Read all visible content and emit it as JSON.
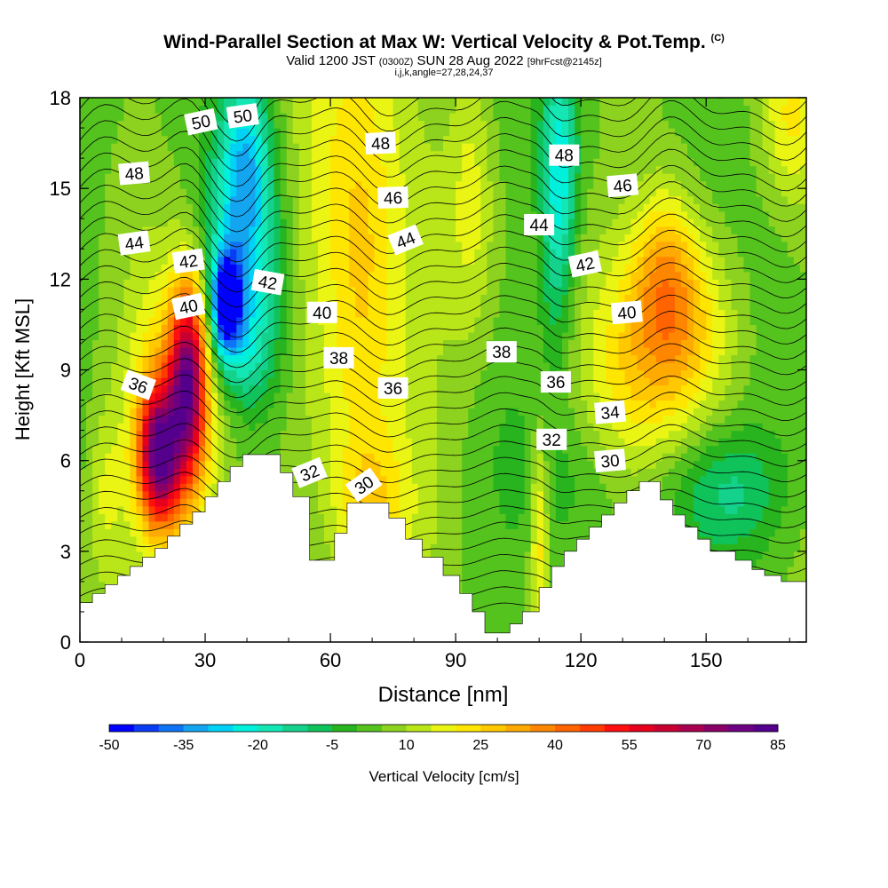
{
  "title": {
    "main": "Wind-Parallel Section at Max W: Vertical Velocity & Pot.Temp.",
    "copyright": "(C)",
    "valid_prefix": "Valid 1200 JST",
    "valid_utc": "(0300Z)",
    "valid_date": "SUN 28 Aug 2022",
    "forecast": "[9hrFcst@2145z]",
    "indices": "i,j,k,angle=27,28,24,37"
  },
  "chart_data": {
    "type": "heatmap",
    "xlabel": "Distance [nm]",
    "ylabel": "Height [Kft MSL]",
    "xlim": [
      0,
      174
    ],
    "ylim": [
      0,
      18
    ],
    "x_ticks": [
      0,
      30,
      60,
      90,
      120,
      150
    ],
    "y_ticks": [
      0,
      3,
      6,
      9,
      12,
      15,
      18
    ],
    "colorbar": {
      "label": "Vertical Velocity [cm/s]",
      "min": -50,
      "max": 85,
      "step": 5,
      "tick_labels": [
        -50,
        -35,
        -20,
        -5,
        10,
        25,
        40,
        55,
        70,
        85
      ],
      "colors": [
        "#0000ff",
        "#0a3cf5",
        "#0f73f5",
        "#14a5f0",
        "#00d2f5",
        "#00f0dc",
        "#14e6b4",
        "#14d28c",
        "#0fc35a",
        "#28b41e",
        "#55c31e",
        "#8cd21e",
        "#b9e619",
        "#ebf514",
        "#ffe600",
        "#ffc800",
        "#ffaa00",
        "#ff8700",
        "#ff6400",
        "#ff3c00",
        "#ff0f0f",
        "#e6001e",
        "#c80032",
        "#aa0050",
        "#880066",
        "#6e0082",
        "#55008c"
      ]
    },
    "terrain": [
      [
        0,
        1.3
      ],
      [
        3,
        1.3
      ],
      [
        3,
        1.6
      ],
      [
        6,
        1.6
      ],
      [
        6,
        1.9
      ],
      [
        9,
        1.9
      ],
      [
        9,
        2.2
      ],
      [
        12,
        2.2
      ],
      [
        12,
        2.5
      ],
      [
        15,
        2.5
      ],
      [
        15,
        2.8
      ],
      [
        18,
        2.8
      ],
      [
        18,
        3.1
      ],
      [
        21,
        3.1
      ],
      [
        21,
        3.5
      ],
      [
        24,
        3.5
      ],
      [
        24,
        3.9
      ],
      [
        27,
        3.9
      ],
      [
        27,
        4.3
      ],
      [
        30,
        4.3
      ],
      [
        30,
        4.8
      ],
      [
        33,
        4.8
      ],
      [
        33,
        5.3
      ],
      [
        36,
        5.3
      ],
      [
        36,
        5.8
      ],
      [
        39,
        5.8
      ],
      [
        39,
        6.2
      ],
      [
        48,
        6.2
      ],
      [
        48,
        5.6
      ],
      [
        51,
        5.6
      ],
      [
        51,
        4.8
      ],
      [
        55,
        4.8
      ],
      [
        55,
        2.7
      ],
      [
        61,
        2.7
      ],
      [
        61,
        3.6
      ],
      [
        64,
        3.6
      ],
      [
        64,
        4.6
      ],
      [
        74,
        4.6
      ],
      [
        74,
        4.1
      ],
      [
        78,
        4.1
      ],
      [
        78,
        3.4
      ],
      [
        82,
        3.4
      ],
      [
        82,
        2.8
      ],
      [
        87,
        2.8
      ],
      [
        87,
        2.2
      ],
      [
        91,
        2.2
      ],
      [
        91,
        1.6
      ],
      [
        94,
        1.6
      ],
      [
        94,
        1.0
      ],
      [
        97,
        1.0
      ],
      [
        97,
        0.3
      ],
      [
        103,
        0.3
      ],
      [
        103,
        0.6
      ],
      [
        106,
        0.6
      ],
      [
        106,
        1.0
      ],
      [
        110,
        1.0
      ],
      [
        110,
        1.8
      ],
      [
        113,
        1.8
      ],
      [
        113,
        2.5
      ],
      [
        116,
        2.5
      ],
      [
        116,
        3.0
      ],
      [
        119,
        3.0
      ],
      [
        119,
        3.4
      ],
      [
        122,
        3.4
      ],
      [
        122,
        3.8
      ],
      [
        125,
        3.8
      ],
      [
        125,
        4.2
      ],
      [
        128,
        4.2
      ],
      [
        128,
        4.6
      ],
      [
        131,
        4.6
      ],
      [
        131,
        5.0
      ],
      [
        134,
        5.0
      ],
      [
        134,
        5.3
      ],
      [
        139,
        5.3
      ],
      [
        139,
        4.7
      ],
      [
        142,
        4.7
      ],
      [
        142,
        4.2
      ],
      [
        145,
        4.2
      ],
      [
        145,
        3.8
      ],
      [
        148,
        3.8
      ],
      [
        148,
        3.4
      ],
      [
        151,
        3.4
      ],
      [
        151,
        3.0
      ],
      [
        157,
        3.0
      ],
      [
        157,
        2.7
      ],
      [
        161,
        2.7
      ],
      [
        161,
        2.4
      ],
      [
        164,
        2.4
      ],
      [
        164,
        2.2
      ],
      [
        168,
        2.2
      ],
      [
        168,
        2.0
      ],
      [
        174,
        2.0
      ]
    ],
    "w_features": [
      {
        "x": 19,
        "y": 6.2,
        "sx": 3.5,
        "sy": 1.6,
        "w": 60
      },
      {
        "x": 26,
        "y": 8.8,
        "sx": 3,
        "sy": 2.2,
        "w": 55
      },
      {
        "x": 23,
        "y": 7.0,
        "sx": 8,
        "sy": 3.2,
        "w": 25
      },
      {
        "x": 35,
        "y": 11.2,
        "sx": 2.5,
        "sy": 1.1,
        "w": -55
      },
      {
        "x": 39,
        "y": 13.2,
        "sx": 6,
        "sy": 2.6,
        "w": -30
      },
      {
        "x": 40,
        "y": 16.5,
        "sx": 4,
        "sy": 1.8,
        "w": -18
      },
      {
        "x": 40,
        "y": 9.5,
        "sx": 6,
        "sy": 1.5,
        "w": -15
      },
      {
        "x": 57,
        "y": 14.5,
        "sx": 10,
        "sy": 5,
        "w": 12
      },
      {
        "x": 68,
        "y": 11.5,
        "sx": 6,
        "sy": 5,
        "w": 14
      },
      {
        "x": 83,
        "y": 9.0,
        "sx": 8,
        "sy": 5,
        "w": 8
      },
      {
        "x": 94,
        "y": 15.0,
        "sx": 4,
        "sy": 4,
        "w": 12
      },
      {
        "x": 115,
        "y": 16.0,
        "sx": 3,
        "sy": 2.5,
        "w": -25
      },
      {
        "x": 114,
        "y": 12.0,
        "sx": 3,
        "sy": 2.5,
        "w": -12
      },
      {
        "x": 110,
        "y": 3.5,
        "sx": 1.6,
        "sy": 2.5,
        "w": 20
      },
      {
        "x": 143,
        "y": 10.5,
        "sx": 10,
        "sy": 2.5,
        "w": 28
      },
      {
        "x": 140,
        "y": 12.5,
        "sx": 5,
        "sy": 2,
        "w": 14
      },
      {
        "x": 128,
        "y": 8.0,
        "sx": 8,
        "sy": 2,
        "w": 8
      },
      {
        "x": 155,
        "y": 5.0,
        "sx": 10,
        "sy": 1.5,
        "w": -15
      },
      {
        "x": 170,
        "y": 17.5,
        "sx": 5,
        "sy": 2,
        "w": 15
      },
      {
        "x": 6,
        "y": 5.0,
        "sx": 3,
        "sy": 2,
        "w": 10
      },
      {
        "x": 4,
        "y": 14.0,
        "sx": 6,
        "sy": 3,
        "w": -3
      },
      {
        "x": 70,
        "y": 4.5,
        "sx": 6,
        "sy": 1.5,
        "w": 12
      },
      {
        "x": 120,
        "y": 6.0,
        "sx": 8,
        "sy": 2,
        "w": -6
      }
    ],
    "theta_labels": [
      {
        "text": "50",
        "x": 29,
        "y": 17.2,
        "angle": -12
      },
      {
        "text": "50",
        "x": 39,
        "y": 17.4,
        "angle": -8
      },
      {
        "text": "48",
        "x": 13,
        "y": 15.5,
        "angle": -5
      },
      {
        "text": "48",
        "x": 72,
        "y": 16.5,
        "angle": -3
      },
      {
        "text": "48",
        "x": 116,
        "y": 16.1,
        "angle": 0
      },
      {
        "text": "46",
        "x": 75,
        "y": 14.7,
        "angle": -2
      },
      {
        "text": "46",
        "x": 130,
        "y": 15.1,
        "angle": -5
      },
      {
        "text": "44",
        "x": 13,
        "y": 13.2,
        "angle": -8
      },
      {
        "text": "44",
        "x": 78,
        "y": 13.3,
        "angle": -22
      },
      {
        "text": "44",
        "x": 110,
        "y": 13.8,
        "angle": 0
      },
      {
        "text": "42",
        "x": 26,
        "y": 12.6,
        "angle": -8
      },
      {
        "text": "42",
        "x": 45,
        "y": 11.9,
        "angle": 10
      },
      {
        "text": "42",
        "x": 121,
        "y": 12.5,
        "angle": -12
      },
      {
        "text": "40",
        "x": 26,
        "y": 11.1,
        "angle": -12
      },
      {
        "text": "40",
        "x": 58,
        "y": 10.9,
        "angle": 0
      },
      {
        "text": "40",
        "x": 131,
        "y": 10.9,
        "angle": -5
      },
      {
        "text": "38",
        "x": 62,
        "y": 9.4,
        "angle": 0
      },
      {
        "text": "38",
        "x": 101,
        "y": 9.6,
        "angle": 0
      },
      {
        "text": "36",
        "x": 14,
        "y": 8.5,
        "angle": 20
      },
      {
        "text": "36",
        "x": 75,
        "y": 8.4,
        "angle": 0
      },
      {
        "text": "36",
        "x": 114,
        "y": 8.6,
        "angle": 0
      },
      {
        "text": "34",
        "x": 127,
        "y": 7.6,
        "angle": -5
      },
      {
        "text": "32",
        "x": 55,
        "y": 5.6,
        "angle": -22
      },
      {
        "text": "32",
        "x": 113,
        "y": 6.7,
        "angle": 0
      },
      {
        "text": "30",
        "x": 68,
        "y": 5.2,
        "angle": -35
      },
      {
        "text": "30",
        "x": 127,
        "y": 6.0,
        "angle": -5
      }
    ]
  }
}
